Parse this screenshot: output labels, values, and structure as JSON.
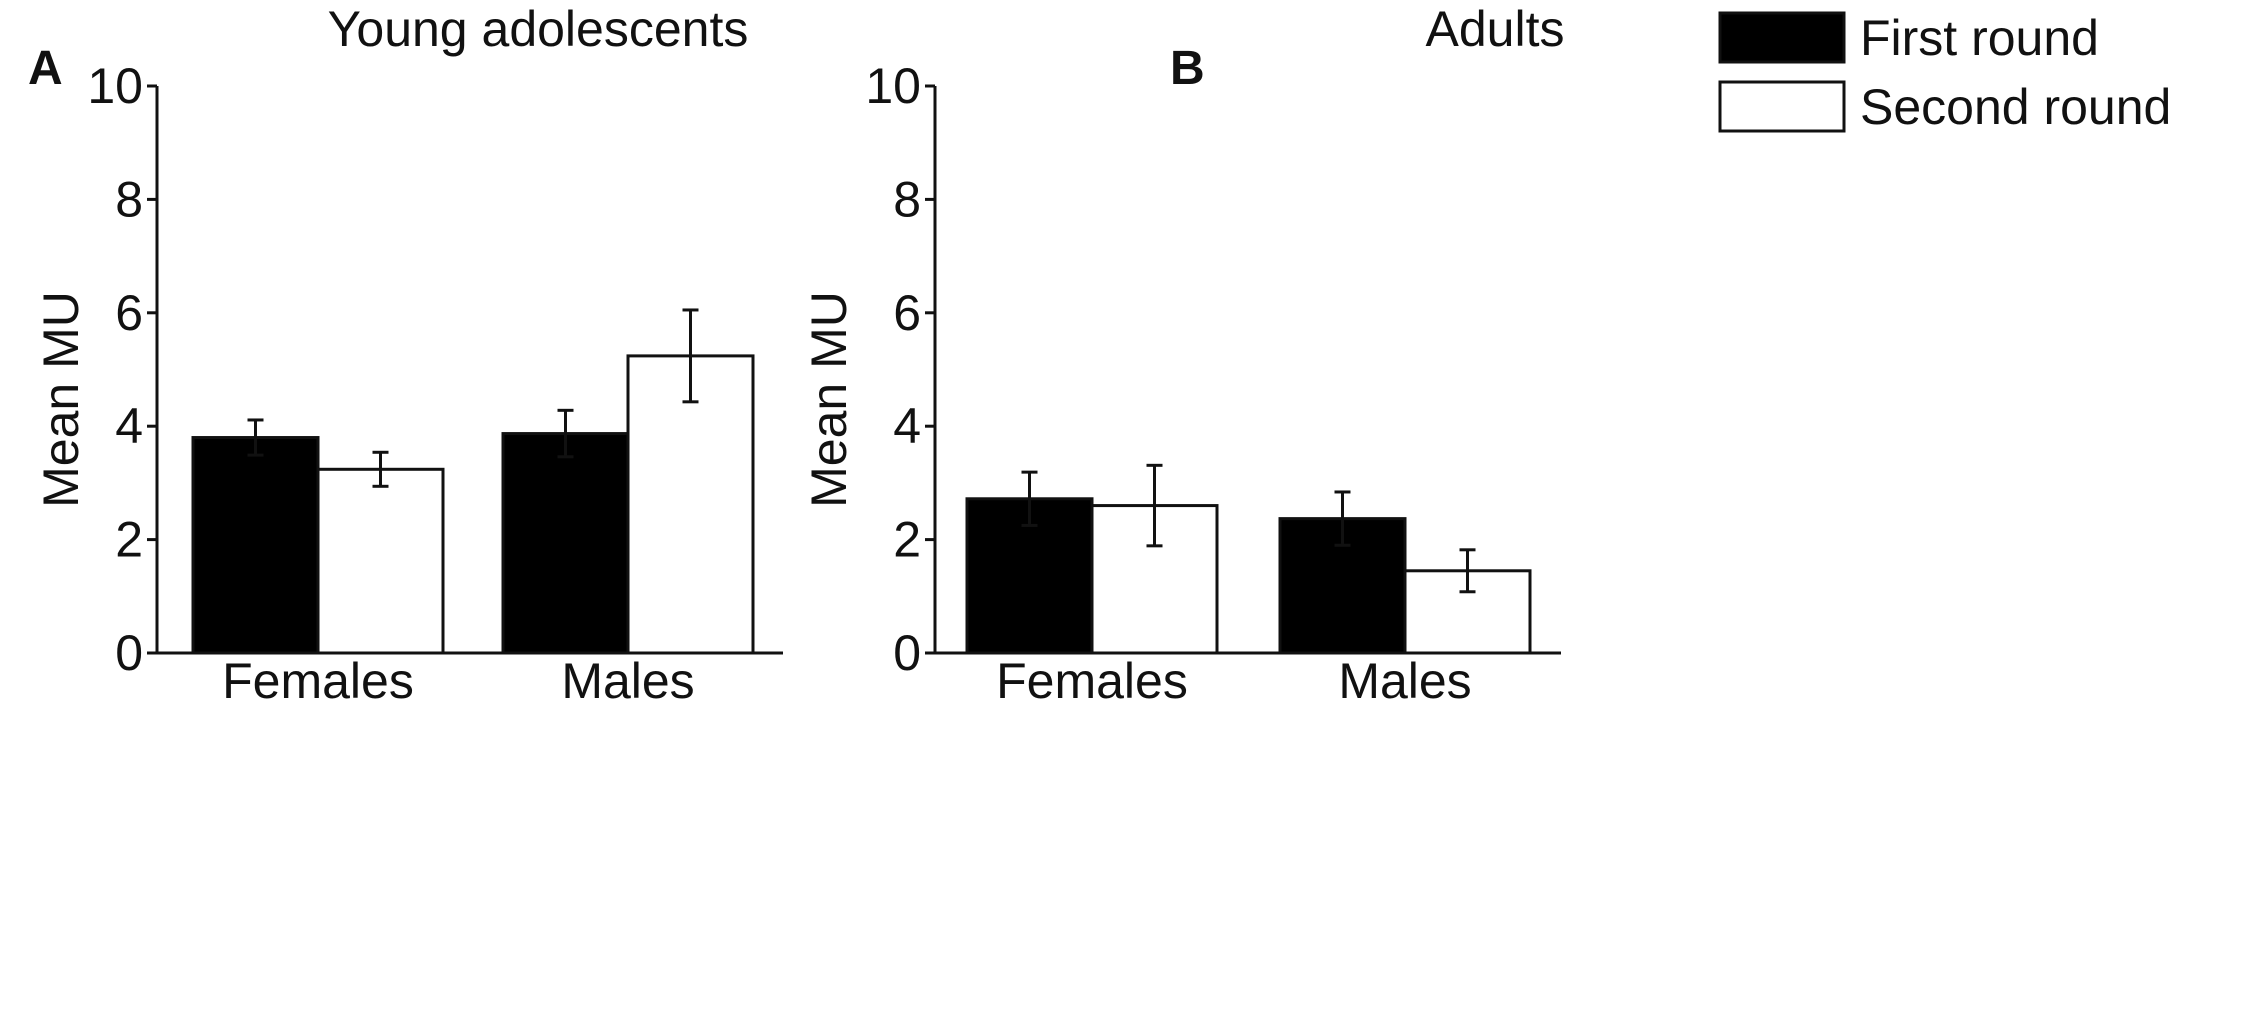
{
  "chart_data": [
    {
      "panel": "A",
      "type": "bar",
      "title": "Young adolescents",
      "xlabel": "",
      "ylabel": "Mean MU",
      "ylim": [
        0,
        10
      ],
      "yticks": [
        "0",
        "2",
        "4",
        "6",
        "8",
        "10"
      ],
      "categories": [
        "Females",
        "Males"
      ],
      "series": [
        {
          "name": "First round",
          "color": "#000000",
          "values": [
            3.8,
            3.87
          ],
          "errors": [
            0.31,
            0.41
          ]
        },
        {
          "name": "Second round",
          "color": "#ffffff",
          "values": [
            3.24,
            5.24
          ],
          "errors": [
            0.3,
            0.81
          ]
        }
      ]
    },
    {
      "panel": "B",
      "type": "bar",
      "title": "Adults",
      "xlabel": "",
      "ylabel": "Mean MU",
      "ylim": [
        0,
        10
      ],
      "yticks": [
        "0",
        "2",
        "4",
        "6",
        "8",
        "10"
      ],
      "categories": [
        "Females",
        "Males"
      ],
      "series": [
        {
          "name": "First round",
          "color": "#000000",
          "values": [
            2.72,
            2.37
          ],
          "errors": [
            0.47,
            0.47
          ]
        },
        {
          "name": "Second round",
          "color": "#ffffff",
          "values": [
            2.6,
            1.45
          ],
          "errors": [
            0.71,
            0.37
          ]
        }
      ]
    }
  ],
  "legend": {
    "position": "top-right",
    "items": [
      {
        "label": "First round",
        "color": "#000000"
      },
      {
        "label": "Second round",
        "color": "#ffffff"
      }
    ]
  }
}
